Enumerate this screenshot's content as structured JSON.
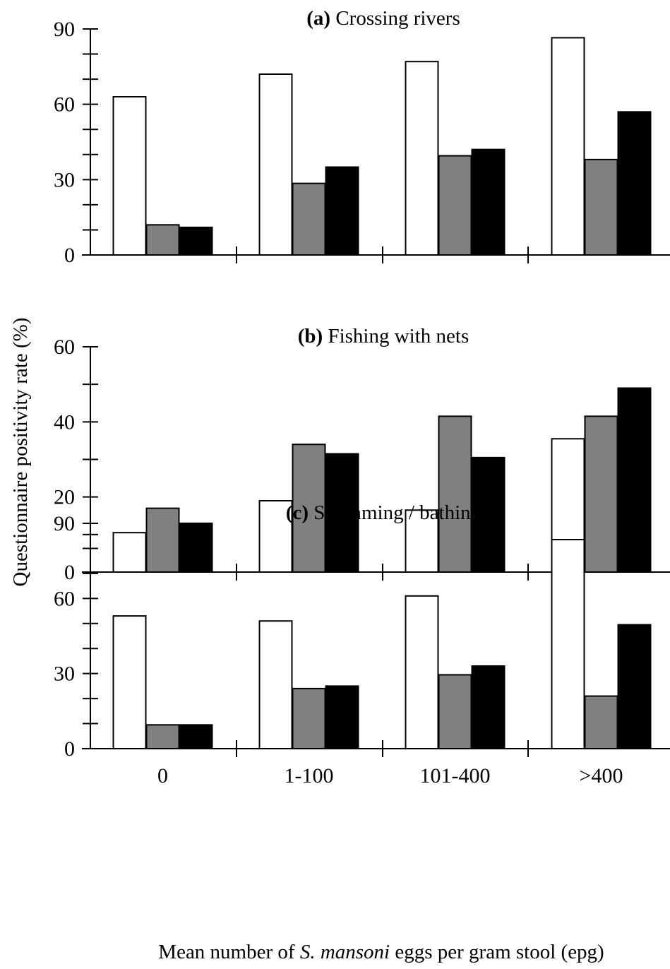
{
  "figure": {
    "ylabel": "Questionnaire positivity rate (%)",
    "xlabel": {
      "prefix": "Mean number of ",
      "species": "S. mansoni",
      "suffix": " eggs per gram stool (epg)"
    },
    "categories": [
      "0",
      "1-100",
      "101-400",
      ">400"
    ]
  },
  "series_fills": [
    "#ffffff",
    "#808080",
    "#000000"
  ],
  "chart_data": [
    {
      "type": "bar",
      "title_prefix": "(a)",
      "title_text": "Crossing rivers",
      "categories": [
        "0",
        "1-100",
        "101-400",
        ">400"
      ],
      "series": [
        {
          "values": [
            63,
            72,
            77,
            86.5
          ]
        },
        {
          "values": [
            12,
            28.5,
            39.5,
            38
          ]
        },
        {
          "values": [
            11,
            35,
            42,
            57
          ]
        }
      ],
      "ylim": [
        0,
        90
      ],
      "yticks": [
        0,
        30,
        60,
        90
      ],
      "minor_step": 10,
      "grid": false,
      "legend": "none"
    },
    {
      "type": "bar",
      "title_prefix": "(b)",
      "title_text": "Fishing with nets",
      "categories": [
        "0",
        "1-100",
        "101-400",
        ">400"
      ],
      "series": [
        {
          "values": [
            10.5,
            19,
            16.5,
            35.5
          ]
        },
        {
          "values": [
            17,
            34,
            41.5,
            41.5
          ]
        },
        {
          "values": [
            13,
            31.5,
            30.5,
            49
          ]
        }
      ],
      "ylim": [
        0,
        60
      ],
      "yticks": [
        0,
        20,
        40,
        60
      ],
      "minor_step": 10,
      "grid": false,
      "legend": "none"
    },
    {
      "type": "bar",
      "title_prefix": "(c)",
      "title_text": "Swimming / bathing",
      "categories": [
        "0",
        "1-100",
        "101-400",
        ">400"
      ],
      "series": [
        {
          "values": [
            53,
            51,
            61,
            83.5
          ]
        },
        {
          "values": [
            9.5,
            24,
            29.5,
            21
          ]
        },
        {
          "values": [
            9.5,
            25,
            33,
            49.5
          ]
        }
      ],
      "ylim": [
        0,
        90
      ],
      "yticks": [
        0,
        30,
        60,
        90
      ],
      "minor_step": 10,
      "grid": false,
      "legend": "none"
    }
  ]
}
